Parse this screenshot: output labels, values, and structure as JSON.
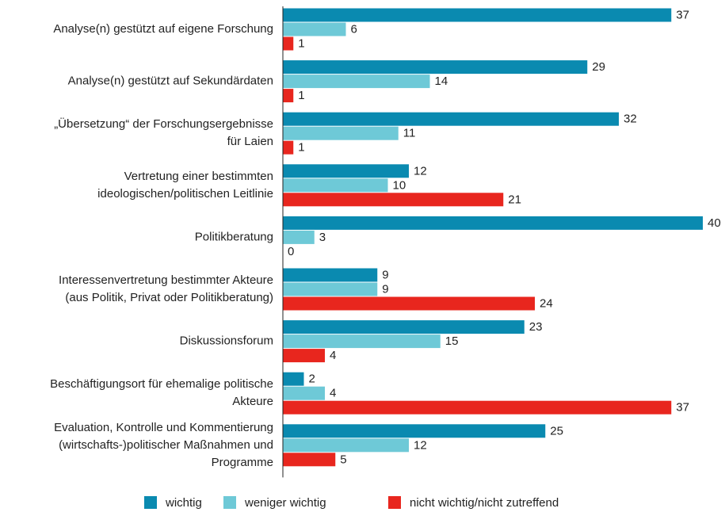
{
  "chart_data": {
    "type": "bar",
    "orientation": "horizontal",
    "categories": [
      [
        "Analyse(n) gestützt auf eigene Forschung"
      ],
      [
        "Analyse(n) gestützt auf Sekundärdaten"
      ],
      [
        "„Übersetzung“ der Forschungsergebnisse",
        "für Laien"
      ],
      [
        "Vertretung einer bestimmten",
        "ideologischen/politischen Leitlinie"
      ],
      [
        "Politikberatung"
      ],
      [
        "Interessenvertretung bestimmter Akteure",
        "(aus Politik, Privat oder Politikberatung)"
      ],
      [
        "Diskussionsforum"
      ],
      [
        "Beschäftigungsort für ehemalige politische",
        "Akteure"
      ],
      [
        "Evaluation, Kontrolle und Kommentierung",
        "(wirtschafts-)politischer Maßnahmen und",
        "Programme"
      ]
    ],
    "series": [
      {
        "name": "wichtig",
        "color": "#0a8ab0",
        "label_color": "#0a7fa3",
        "values": [
          37,
          29,
          32,
          12,
          40,
          9,
          23,
          2,
          25
        ]
      },
      {
        "name": "weniger wichtig",
        "color": "#6ec9d7",
        "label_color": "#5bbccc",
        "values": [
          6,
          14,
          11,
          10,
          3,
          9,
          15,
          4,
          12
        ]
      },
      {
        "name": "nicht wichtig/nicht zutreffend",
        "color": "#e8261e",
        "label_color": "#d8201a",
        "values": [
          1,
          1,
          1,
          21,
          0,
          24,
          4,
          37,
          5
        ]
      }
    ],
    "xlim": [
      0,
      40
    ],
    "legend": "bottom"
  }
}
